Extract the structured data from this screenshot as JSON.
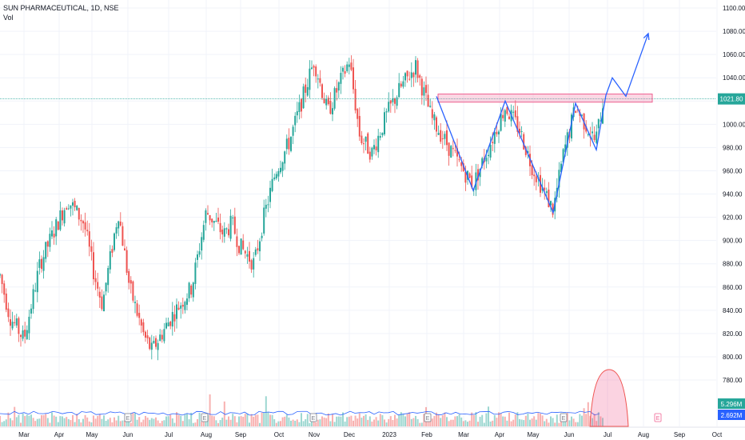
{
  "header": {
    "symbol_line": "SUN PHARMACEUTICAL, 1D, NSE",
    "volume_label": "Vol"
  },
  "price_axis": {
    "ticks": [
      "1100.00",
      "1080.00",
      "1060.00",
      "1040.00",
      "1020.00",
      "1000.00",
      "980.00",
      "960.00",
      "940.00",
      "920.00",
      "900.00",
      "880.00",
      "860.00",
      "840.00",
      "820.00",
      "800.00",
      "780.00"
    ],
    "last_price": "1021.80",
    "last_price_value": 1021.8,
    "volume_badge": "5.296M",
    "volume_ma_badge": "2.692M"
  },
  "time_axis": {
    "labels": [
      "Mar",
      "Apr",
      "May",
      "Jun",
      "Jul",
      "Aug",
      "Sep",
      "Oct",
      "Nov",
      "Dec",
      "2023",
      "Feb",
      "Mar",
      "Apr",
      "May",
      "Jun",
      "Jul",
      "Aug",
      "Sep",
      "Oct"
    ]
  },
  "colors": {
    "up": "#26a69a",
    "down": "#ef5350",
    "drawing": "#2962ff",
    "zone": "#f06292",
    "last_price_line": "#26a69a",
    "volume_ma": "#2962ff",
    "earnings_marker": "#787b86"
  },
  "chart_data": {
    "type": "candlestick",
    "title": "SUN PHARMACEUTICAL, 1D, NSE",
    "ylim": [
      780,
      1100
    ],
    "x_labels": [
      "Mar",
      "Apr",
      "May",
      "Jun",
      "Jul",
      "Aug",
      "Sep",
      "Oct",
      "Nov",
      "Dec",
      "2023",
      "Feb",
      "Mar",
      "Apr",
      "May",
      "Jun",
      "Jul",
      "Aug",
      "Sep",
      "Oct"
    ],
    "price_path": [
      {
        "x": "Mar",
        "close": 870
      },
      {
        "x": "Mar",
        "close": 835
      },
      {
        "x": "Mar",
        "close": 815
      },
      {
        "x": "Apr",
        "close": 880
      },
      {
        "x": "Apr",
        "close": 920
      },
      {
        "x": "Apr",
        "close": 935
      },
      {
        "x": "May",
        "close": 915
      },
      {
        "x": "May",
        "close": 870
      },
      {
        "x": "May",
        "close": 845
      },
      {
        "x": "Jun",
        "close": 925
      },
      {
        "x": "Jun",
        "close": 860
      },
      {
        "x": "Jun",
        "close": 818
      },
      {
        "x": "Jul",
        "close": 805
      },
      {
        "x": "Jul",
        "close": 835
      },
      {
        "x": "Jul",
        "close": 860
      },
      {
        "x": "Aug",
        "close": 925
      },
      {
        "x": "Aug",
        "close": 905
      },
      {
        "x": "Aug",
        "close": 915
      },
      {
        "x": "Sep",
        "close": 895
      },
      {
        "x": "Sep",
        "close": 880
      },
      {
        "x": "Sep",
        "close": 920
      },
      {
        "x": "Oct",
        "close": 960
      },
      {
        "x": "Oct",
        "close": 985
      },
      {
        "x": "Nov",
        "close": 1055
      },
      {
        "x": "Nov",
        "close": 1010
      },
      {
        "x": "Dec",
        "close": 1055
      },
      {
        "x": "Dec",
        "close": 990
      },
      {
        "x": "Dec",
        "close": 975
      },
      {
        "x": "2023",
        "close": 1010
      },
      {
        "x": "2023",
        "close": 1030
      },
      {
        "x": "Feb",
        "close": 1050
      },
      {
        "x": "Feb",
        "close": 1005
      },
      {
        "x": "Mar",
        "close": 965
      },
      {
        "x": "Mar",
        "close": 948
      },
      {
        "x": "Apr",
        "close": 1015
      },
      {
        "x": "Apr",
        "close": 995
      },
      {
        "x": "May",
        "close": 965
      },
      {
        "x": "May",
        "close": 940
      },
      {
        "x": "May",
        "close": 926
      },
      {
        "x": "Jun",
        "close": 975
      },
      {
        "x": "Jun",
        "close": 1015
      },
      {
        "x": "Jun",
        "close": 985
      },
      {
        "x": "Jul",
        "close": 1021.8
      }
    ],
    "annotations": {
      "resistance_zone": [
        1019,
        1026
      ],
      "pattern_points": [
        {
          "x": "Feb",
          "y": 1024
        },
        {
          "x": "Mar",
          "y": 943
        },
        {
          "x": "Apr",
          "y": 1020
        },
        {
          "x": "May",
          "y": 924
        },
        {
          "x": "Jun",
          "y": 1018
        },
        {
          "x": "Jun",
          "y": 978
        },
        {
          "x": "Jul",
          "y": 1025
        },
        {
          "x": "Jul",
          "y": 1040
        },
        {
          "x": "Jul",
          "y": 1024
        },
        {
          "x": "Aug",
          "y": 1078
        }
      ]
    },
    "volume": {
      "last": "5.296M",
      "ma": "2.692M"
    }
  }
}
